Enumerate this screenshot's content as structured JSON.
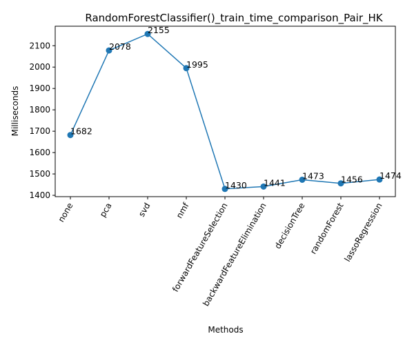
{
  "chart_data": {
    "type": "line",
    "title": "RandomForestClassifier()_train_time_comparison_Pair_HK",
    "xlabel": "Methods",
    "ylabel": "Milliseconds",
    "categories": [
      "none",
      "pca",
      "svd",
      "nmf",
      "forwardFeatureSelection",
      "backwardFeatureElimination",
      "decisionTree",
      "randomForest",
      "lassoRegression"
    ],
    "series": [
      {
        "values": [
          1682,
          2078,
          2155,
          1995,
          1430,
          1441,
          1473,
          1456,
          1474
        ],
        "color": "#1f77b4",
        "marker": "circle"
      }
    ],
    "data_labels": [
      "1682",
      "2078",
      "2155",
      "1995",
      "1430",
      "1441",
      "1473",
      "1456",
      "1474"
    ],
    "y_ticks": [
      1400,
      1500,
      1600,
      1700,
      1800,
      1900,
      2000,
      2100
    ],
    "ylim": [
      1393.75,
      2191.25
    ],
    "grid": false,
    "x_tick_rotation_deg": 60
  }
}
